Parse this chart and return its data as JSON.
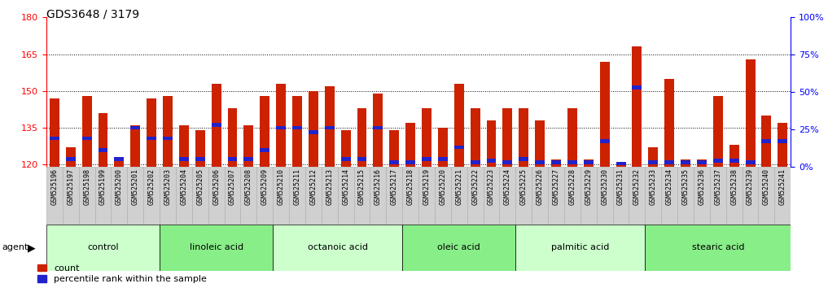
{
  "title": "GDS3648 / 3179",
  "samples": [
    "GSM525196",
    "GSM525197",
    "GSM525198",
    "GSM525199",
    "GSM525200",
    "GSM525201",
    "GSM525202",
    "GSM525203",
    "GSM525204",
    "GSM525205",
    "GSM525206",
    "GSM525207",
    "GSM525208",
    "GSM525209",
    "GSM525210",
    "GSM525211",
    "GSM525212",
    "GSM525213",
    "GSM525214",
    "GSM525215",
    "GSM525216",
    "GSM525217",
    "GSM525218",
    "GSM525219",
    "GSM525220",
    "GSM525221",
    "GSM525222",
    "GSM525223",
    "GSM525224",
    "GSM525225",
    "GSM525226",
    "GSM525227",
    "GSM525228",
    "GSM525229",
    "GSM525230",
    "GSM525231",
    "GSM525232",
    "GSM525233",
    "GSM525234",
    "GSM525235",
    "GSM525236",
    "GSM525237",
    "GSM525238",
    "GSM525239",
    "GSM525240",
    "GSM525241"
  ],
  "counts": [
    147,
    127,
    148,
    141,
    122,
    136,
    147,
    148,
    136,
    134,
    153,
    143,
    136,
    148,
    153,
    148,
    150,
    152,
    134,
    143,
    149,
    134,
    137,
    143,
    135,
    153,
    143,
    138,
    143,
    143,
    138,
    122,
    143,
    122,
    162,
    120,
    168,
    127,
    155,
    122,
    122,
    148,
    128,
    163,
    140,
    137
  ],
  "percentile_ranks_pct": [
    18,
    4,
    18,
    10,
    4,
    25,
    18,
    18,
    4,
    4,
    27,
    4,
    4,
    10,
    25,
    25,
    22,
    25,
    4,
    4,
    25,
    2,
    2,
    4,
    4,
    12,
    2,
    3,
    2,
    4,
    2,
    2,
    2,
    2,
    16,
    1,
    52,
    2,
    2,
    2,
    2,
    3,
    3,
    2,
    16,
    16
  ],
  "groups": [
    {
      "label": "control",
      "start": 0,
      "end": 7
    },
    {
      "label": "linoleic acid",
      "start": 7,
      "end": 14
    },
    {
      "label": "octanoic acid",
      "start": 14,
      "end": 22
    },
    {
      "label": "oleic acid",
      "start": 22,
      "end": 29
    },
    {
      "label": "palmitic acid",
      "start": 29,
      "end": 37
    },
    {
      "label": "stearic acid",
      "start": 37,
      "end": 46
    }
  ],
  "ylim_left": [
    119,
    180
  ],
  "yticks_left": [
    120,
    135,
    150,
    165,
    180
  ],
  "ylim_right": [
    0,
    100
  ],
  "yticks_right": [
    0,
    25,
    50,
    75,
    100
  ],
  "bar_color": "#cc2200",
  "blue_color": "#2222cc",
  "group_colors": [
    "#ccffcc",
    "#88ee88",
    "#ccffcc",
    "#88ee88",
    "#ccffcc",
    "#88ee88"
  ]
}
